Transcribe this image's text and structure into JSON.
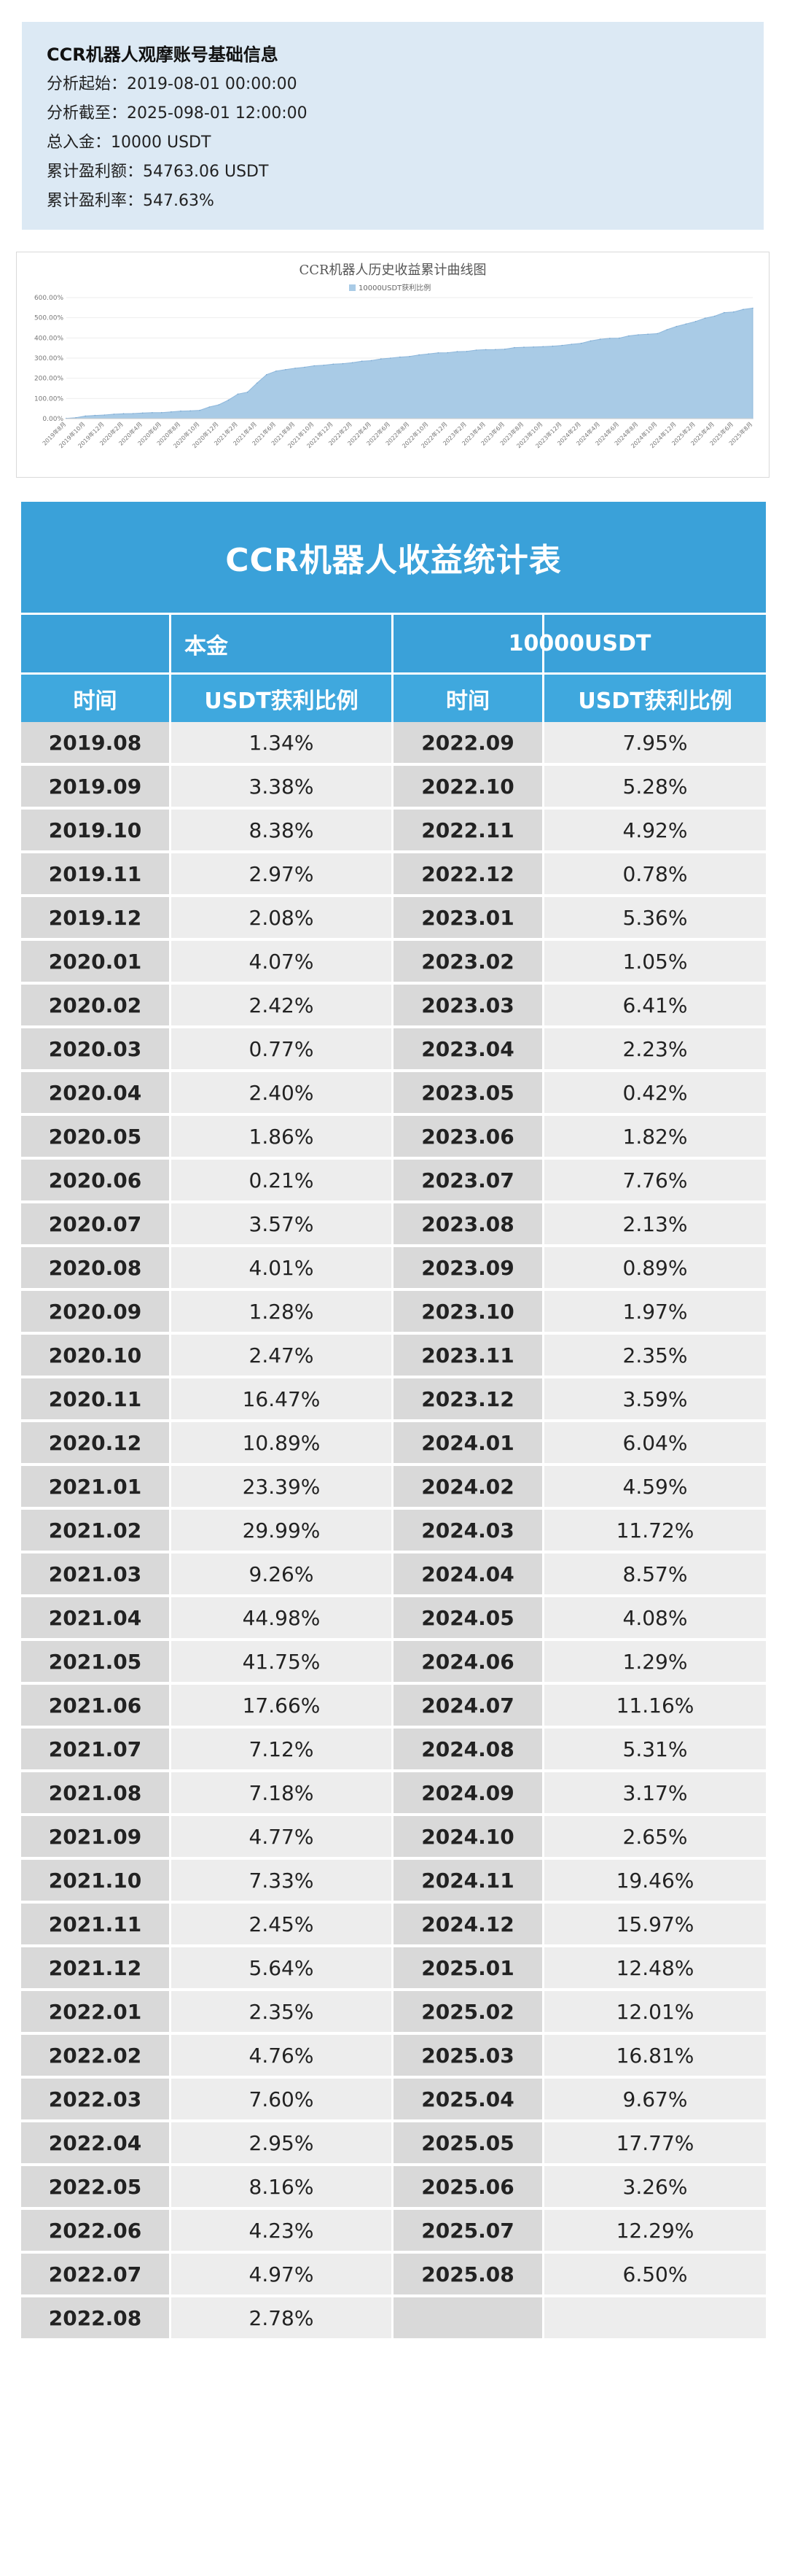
{
  "info": {
    "title": "CCR机器人观摩账号基础信息",
    "lines": [
      {
        "label": "分析起始：",
        "value": "2019-08-01 00:00:00"
      },
      {
        "label": "分析截至：",
        "value": "2025-098-01 12:00:00"
      },
      {
        "label": "总入金：",
        "value": "10000 USDT"
      },
      {
        "label": "累计盈利额：",
        "value": "54763.06 USDT"
      },
      {
        "label": "累计盈利率：",
        "value": "547.63%"
      }
    ]
  },
  "chart_data": {
    "type": "area",
    "title": "CCR机器人历史收益累计曲线图",
    "legend": "10000USDT获利比例",
    "legend_position": "top-center",
    "color": "#a9cbe6",
    "ylim": [
      0,
      600
    ],
    "y_ticks": [
      "0.00%",
      "100.00%",
      "200.00%",
      "300.00%",
      "400.00%",
      "500.00%",
      "600.00%"
    ],
    "categories": [
      "2019年8月",
      "2019年9月",
      "2019年10月",
      "2019年11月",
      "2019年12月",
      "2020年1月",
      "2020年2月",
      "2020年3月",
      "2020年4月",
      "2020年5月",
      "2020年6月",
      "2020年7月",
      "2020年8月",
      "2020年9月",
      "2020年10月",
      "2020年11月",
      "2020年12月",
      "2021年1月",
      "2021年2月",
      "2021年3月",
      "2021年4月",
      "2021年5月",
      "2021年6月",
      "2021年7月",
      "2021年8月",
      "2021年9月",
      "2021年10月",
      "2021年11月",
      "2021年12月",
      "2022年1月",
      "2022年2月",
      "2022年3月",
      "2022年4月",
      "2022年5月",
      "2022年6月",
      "2022年7月",
      "2022年8月",
      "2022年9月",
      "2022年10月",
      "2022年11月",
      "2022年12月",
      "2023年1月",
      "2023年2月",
      "2023年3月",
      "2023年4月",
      "2023年5月",
      "2023年6月",
      "2023年7月",
      "2023年8月",
      "2023年9月",
      "2023年10月",
      "2023年11月",
      "2023年12月",
      "2024年1月",
      "2024年2月",
      "2024年3月",
      "2024年4月",
      "2024年5月",
      "2024年6月",
      "2024年7月",
      "2024年8月",
      "2024年9月",
      "2024年10月",
      "2024年11月",
      "2024年12月",
      "2025年1月",
      "2025年2月",
      "2025年3月",
      "2025年4月",
      "2025年5月",
      "2025年6月",
      "2025年7月",
      "2025年8月"
    ],
    "values": [
      1.34,
      4.72,
      13.1,
      16.07,
      18.15,
      22.22,
      24.64,
      25.41,
      27.81,
      29.67,
      29.88,
      33.45,
      37.46,
      38.74,
      41.21,
      57.68,
      68.57,
      91.96,
      121.95,
      131.21,
      176.19,
      217.94,
      235.6,
      242.72,
      249.9,
      254.67,
      262.0,
      264.45,
      270.09,
      272.44,
      277.2,
      284.8,
      287.75,
      295.91,
      300.14,
      305.11,
      307.89,
      315.84,
      321.12,
      326.04,
      326.82,
      332.18,
      333.23,
      339.64,
      341.87,
      342.29,
      344.11,
      351.87,
      354.0,
      354.89,
      356.86,
      359.21,
      362.8,
      368.84,
      373.43,
      385.15,
      393.72,
      397.8,
      399.09,
      410.25,
      415.56,
      418.73,
      421.38,
      440.84,
      456.81,
      469.29,
      481.3,
      498.11,
      507.78,
      525.55,
      528.81,
      541.1,
      547.6
    ]
  },
  "table": {
    "title": "CCR机器人收益统计表",
    "principal_label": "本金",
    "principal_value": "10000USDT",
    "headers": [
      "时间",
      "USDT获利比例",
      "时间",
      "USDT获利比例"
    ],
    "left": [
      [
        "2019.08",
        "1.34%"
      ],
      [
        "2019.09",
        "3.38%"
      ],
      [
        "2019.10",
        "8.38%"
      ],
      [
        "2019.11",
        "2.97%"
      ],
      [
        "2019.12",
        "2.08%"
      ],
      [
        "2020.01",
        "4.07%"
      ],
      [
        "2020.02",
        "2.42%"
      ],
      [
        "2020.03",
        "0.77%"
      ],
      [
        "2020.04",
        "2.40%"
      ],
      [
        "2020.05",
        "1.86%"
      ],
      [
        "2020.06",
        "0.21%"
      ],
      [
        "2020.07",
        "3.57%"
      ],
      [
        "2020.08",
        "4.01%"
      ],
      [
        "2020.09",
        "1.28%"
      ],
      [
        "2020.10",
        "2.47%"
      ],
      [
        "2020.11",
        "16.47%"
      ],
      [
        "2020.12",
        "10.89%"
      ],
      [
        "2021.01",
        "23.39%"
      ],
      [
        "2021.02",
        "29.99%"
      ],
      [
        "2021.03",
        "9.26%"
      ],
      [
        "2021.04",
        "44.98%"
      ],
      [
        "2021.05",
        "41.75%"
      ],
      [
        "2021.06",
        "17.66%"
      ],
      [
        "2021.07",
        "7.12%"
      ],
      [
        "2021.08",
        "7.18%"
      ],
      [
        "2021.09",
        "4.77%"
      ],
      [
        "2021.10",
        "7.33%"
      ],
      [
        "2021.11",
        "2.45%"
      ],
      [
        "2021.12",
        "5.64%"
      ],
      [
        "2022.01",
        "2.35%"
      ],
      [
        "2022.02",
        "4.76%"
      ],
      [
        "2022.03",
        "7.60%"
      ],
      [
        "2022.04",
        "2.95%"
      ],
      [
        "2022.05",
        "8.16%"
      ],
      [
        "2022.06",
        "4.23%"
      ],
      [
        "2022.07",
        "4.97%"
      ],
      [
        "2022.08",
        "2.78%"
      ]
    ],
    "right": [
      [
        "2022.09",
        "7.95%"
      ],
      [
        "2022.10",
        "5.28%"
      ],
      [
        "2022.11",
        "4.92%"
      ],
      [
        "2022.12",
        "0.78%"
      ],
      [
        "2023.01",
        "5.36%"
      ],
      [
        "2023.02",
        "1.05%"
      ],
      [
        "2023.03",
        "6.41%"
      ],
      [
        "2023.04",
        "2.23%"
      ],
      [
        "2023.05",
        "0.42%"
      ],
      [
        "2023.06",
        "1.82%"
      ],
      [
        "2023.07",
        "7.76%"
      ],
      [
        "2023.08",
        "2.13%"
      ],
      [
        "2023.09",
        "0.89%"
      ],
      [
        "2023.10",
        "1.97%"
      ],
      [
        "2023.11",
        "2.35%"
      ],
      [
        "2023.12",
        "3.59%"
      ],
      [
        "2024.01",
        "6.04%"
      ],
      [
        "2024.02",
        "4.59%"
      ],
      [
        "2024.03",
        "11.72%"
      ],
      [
        "2024.04",
        "8.57%"
      ],
      [
        "2024.05",
        "4.08%"
      ],
      [
        "2024.06",
        "1.29%"
      ],
      [
        "2024.07",
        "11.16%"
      ],
      [
        "2024.08",
        "5.31%"
      ],
      [
        "2024.09",
        "3.17%"
      ],
      [
        "2024.10",
        "2.65%"
      ],
      [
        "2024.11",
        "19.46%"
      ],
      [
        "2024.12",
        "15.97%"
      ],
      [
        "2025.01",
        "12.48%"
      ],
      [
        "2025.02",
        "12.01%"
      ],
      [
        "2025.03",
        "16.81%"
      ],
      [
        "2025.04",
        "9.67%"
      ],
      [
        "2025.05",
        "17.77%"
      ],
      [
        "2025.06",
        "3.26%"
      ],
      [
        "2025.07",
        "12.29%"
      ],
      [
        "2025.08",
        "6.50%"
      ],
      [
        "",
        ""
      ]
    ]
  },
  "colors": {
    "info_bg": "#dce9f4",
    "header_blue": "#3aa1d9",
    "date_cell": "#d9d9d9",
    "pct_cell": "#ededed",
    "area_fill": "#a9cbe6"
  }
}
